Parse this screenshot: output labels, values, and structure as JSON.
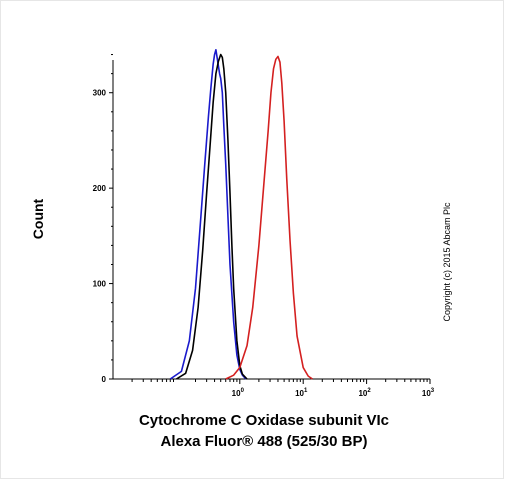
{
  "chart_data": {
    "type": "line",
    "subtype": "flow-cytometry-histogram",
    "x_scale": "log",
    "xlim": [
      0.01,
      1000
    ],
    "ylim": [
      0,
      350
    ],
    "xticks": [
      {
        "value": 1,
        "base": "10",
        "exp": "0"
      },
      {
        "value": 10,
        "base": "10",
        "exp": "1"
      },
      {
        "value": 100,
        "base": "10",
        "exp": "2"
      },
      {
        "value": 1000,
        "base": "10",
        "exp": "3"
      }
    ],
    "yticks": [
      0,
      100,
      200,
      300
    ],
    "ylabel": "Count",
    "xlabel_lines": [
      "Cytochrome C Oxidase subunit VIc",
      "Alexa Fluor® 488 (525/30 BP)"
    ],
    "copyright": "Copyright (c) 2015 Abcam Plc",
    "grid": false,
    "series": [
      {
        "color": "#1a1acc",
        "x": [
          0.08,
          0.12,
          0.16,
          0.2,
          0.24,
          0.28,
          0.32,
          0.35,
          0.38,
          0.4,
          0.42,
          0.45,
          0.48,
          0.5,
          0.53,
          0.56,
          0.6,
          0.65,
          0.7,
          0.8,
          0.9,
          1.0,
          1.1,
          1.25
        ],
        "y": [
          0,
          8,
          40,
          95,
          165,
          225,
          275,
          305,
          330,
          340,
          345,
          332,
          320,
          315,
          300,
          265,
          225,
          170,
          120,
          60,
          25,
          10,
          4,
          0
        ]
      },
      {
        "color": "#000000",
        "x": [
          0.1,
          0.14,
          0.18,
          0.22,
          0.26,
          0.3,
          0.34,
          0.38,
          0.42,
          0.46,
          0.5,
          0.53,
          0.56,
          0.6,
          0.65,
          0.7,
          0.75,
          0.8,
          0.9,
          1.0,
          1.1,
          1.3
        ],
        "y": [
          0,
          6,
          30,
          75,
          135,
          195,
          245,
          290,
          320,
          333,
          340,
          337,
          325,
          300,
          250,
          195,
          140,
          95,
          40,
          14,
          5,
          0
        ]
      },
      {
        "color": "#d42020",
        "x": [
          0.6,
          0.8,
          1.0,
          1.3,
          1.6,
          2.0,
          2.4,
          2.8,
          3.1,
          3.4,
          3.7,
          4.0,
          4.3,
          4.6,
          5.0,
          5.5,
          6.2,
          7.0,
          8.0,
          10.0,
          12.0,
          14.0
        ],
        "y": [
          0,
          4,
          12,
          35,
          75,
          140,
          205,
          260,
          300,
          325,
          335,
          338,
          332,
          310,
          270,
          210,
          145,
          90,
          45,
          12,
          3,
          0
        ]
      }
    ]
  }
}
